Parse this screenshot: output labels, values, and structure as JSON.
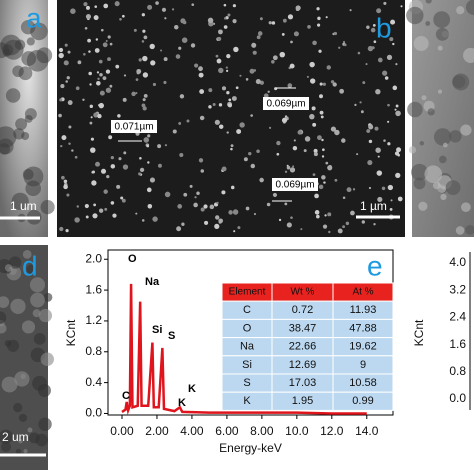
{
  "panels": {
    "a": {
      "label": "a",
      "scale": "1 um"
    },
    "b": {
      "label": "b",
      "scale": "1 µm",
      "measurements": [
        "0.069µm",
        "0.071µm",
        "0.069µm"
      ]
    },
    "d": {
      "label": "d",
      "scale": "2 um"
    },
    "f": {
      "y_label": "KCnt",
      "yticks": [
        "4.0",
        "3.2",
        "2.4",
        "1.6",
        "0.8",
        "0.0"
      ]
    }
  },
  "chart_data": {
    "type": "line",
    "panel_label": "e",
    "x_label": "Energy-keV",
    "y_label": "KCnt",
    "series": [
      {
        "name": "EDS spectrum",
        "color": "#e0141c",
        "x": [
          0,
          0.2,
          0.27,
          0.35,
          0.45,
          0.52,
          0.6,
          0.9,
          1.04,
          1.12,
          1.5,
          1.74,
          1.82,
          2.1,
          2.31,
          2.4,
          3.0,
          3.31,
          3.45,
          5,
          8,
          10,
          12,
          14
        ],
        "values": [
          0.02,
          0.05,
          0.15,
          0.04,
          0.1,
          1.68,
          0.08,
          0.1,
          1.45,
          0.1,
          0.1,
          0.92,
          0.08,
          0.08,
          0.85,
          0.06,
          0.03,
          0.08,
          0.02,
          0.01,
          0.01,
          0.01,
          0,
          0
        ]
      }
    ],
    "annotations": [
      "O",
      "Na",
      "Si",
      "S",
      "C",
      "K",
      "K"
    ],
    "xlim": [
      -0.8,
      15.5
    ],
    "ylim": [
      -0.02,
      2.12
    ],
    "xticks": [
      {
        "value": 0,
        "label": "0.00"
      },
      {
        "value": 2,
        "label": "2.00"
      },
      {
        "value": 4,
        "label": "4.00"
      },
      {
        "value": 6,
        "label": "6.00"
      },
      {
        "value": 8,
        "label": "8.00"
      },
      {
        "value": 10,
        "label": "10.0"
      },
      {
        "value": 12,
        "label": "12.0"
      },
      {
        "value": 14,
        "label": "14.0"
      }
    ],
    "yticks": [
      {
        "value": 0,
        "label": "0.0"
      },
      0.4,
      0.8,
      1.2,
      1.6,
      {
        "value": 2,
        "label": "2.0"
      }
    ],
    "table": {
      "header": [
        "Element",
        "Wt %",
        "At %"
      ],
      "rows": [
        [
          "C",
          "0.72",
          "11.93"
        ],
        [
          "O",
          "38.47",
          "47.88"
        ],
        [
          "Na",
          "22.66",
          "19.62"
        ],
        [
          "Si",
          "12.69",
          "9"
        ],
        [
          "S",
          "17.03",
          "10.58"
        ],
        [
          "K",
          "1.95",
          "0.99"
        ]
      ]
    }
  }
}
